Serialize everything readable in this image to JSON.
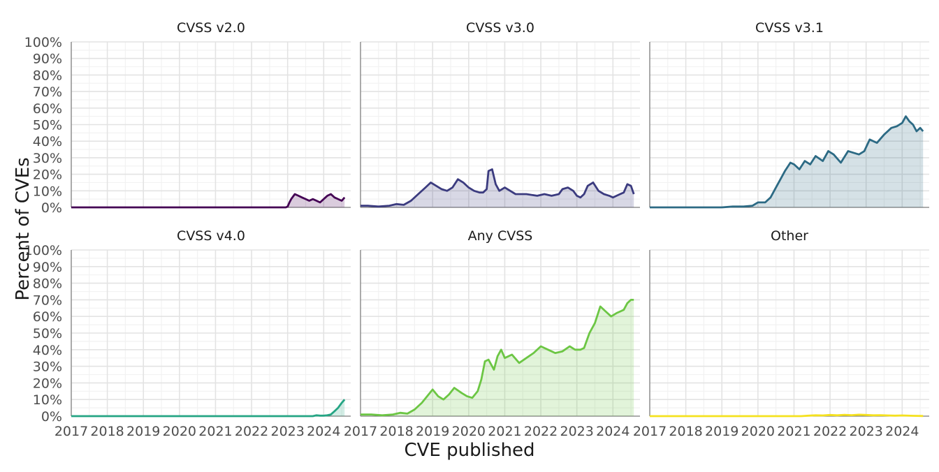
{
  "chart_data": {
    "type": "area",
    "xlabel": "CVE published",
    "ylabel": "Percent of CVEs",
    "x_ticks": [
      "2017",
      "2018",
      "2019",
      "2020",
      "2021",
      "2022",
      "2023",
      "2024"
    ],
    "y_ticks": [
      "0%",
      "10%",
      "20%",
      "30%",
      "40%",
      "50%",
      "60%",
      "70%",
      "80%",
      "90%",
      "100%"
    ],
    "xlim": [
      2017.0,
      2024.75
    ],
    "ylim": [
      0,
      100
    ],
    "grid": true,
    "colors": {
      "CVSS v2.0": "#440154",
      "CVSS v3.0": "#3b3b7f",
      "CVSS v3.1": "#2c6a84",
      "CVSS v4.0": "#25a584",
      "Any CVSS": "#6cc644",
      "Other": "#f5e11f"
    },
    "panels": [
      {
        "title": "CVSS v2.0",
        "x": [
          2017.0,
          2022.95,
          2023.0,
          2023.05,
          2023.1,
          2023.2,
          2023.3,
          2023.4,
          2023.5,
          2023.6,
          2023.7,
          2023.8,
          2023.9,
          2024.0,
          2024.1,
          2024.2,
          2024.3,
          2024.4,
          2024.5,
          2024.58
        ],
        "y": [
          0,
          0,
          0.5,
          3,
          5,
          8,
          7,
          6,
          5,
          4,
          5,
          4,
          3,
          5,
          7,
          8,
          6,
          5,
          4,
          6
        ]
      },
      {
        "title": "CVSS v3.0",
        "x": [
          2017.0,
          2017.2,
          2017.5,
          2017.8,
          2018.0,
          2018.2,
          2018.4,
          2018.6,
          2018.8,
          2018.95,
          2019.1,
          2019.25,
          2019.4,
          2019.55,
          2019.7,
          2019.85,
          2020.0,
          2020.15,
          2020.3,
          2020.4,
          2020.5,
          2020.55,
          2020.65,
          2020.75,
          2020.85,
          2021.0,
          2021.3,
          2021.6,
          2021.9,
          2022.1,
          2022.3,
          2022.5,
          2022.6,
          2022.75,
          2022.9,
          2023.0,
          2023.1,
          2023.2,
          2023.3,
          2023.45,
          2023.6,
          2023.75,
          2023.9,
          2024.0,
          2024.1,
          2024.2,
          2024.3,
          2024.4,
          2024.5,
          2024.58
        ],
        "y": [
          1,
          1,
          0.5,
          1,
          2,
          1.5,
          4,
          8,
          12,
          15,
          13,
          11,
          10,
          12,
          17,
          15,
          12,
          10,
          9,
          9,
          11,
          22,
          23,
          14,
          10,
          12,
          8,
          8,
          7,
          8,
          7,
          8,
          11,
          12,
          10,
          7,
          6,
          8,
          13,
          15,
          10,
          8,
          7,
          6,
          7,
          8,
          9,
          14,
          13,
          8
        ]
      },
      {
        "title": "CVSS v3.1",
        "x": [
          2017.0,
          2018.5,
          2019.0,
          2019.3,
          2019.6,
          2019.85,
          2020.0,
          2020.2,
          2020.35,
          2020.5,
          2020.6,
          2020.75,
          2020.9,
          2021.0,
          2021.15,
          2021.3,
          2021.45,
          2021.6,
          2021.8,
          2021.95,
          2022.1,
          2022.3,
          2022.5,
          2022.65,
          2022.8,
          2022.95,
          2023.1,
          2023.3,
          2023.5,
          2023.7,
          2023.85,
          2024.0,
          2024.1,
          2024.2,
          2024.3,
          2024.4,
          2024.5,
          2024.58
        ],
        "y": [
          0,
          0,
          0,
          0.5,
          0.5,
          1,
          3,
          3,
          6,
          12,
          16,
          22,
          27,
          26,
          23,
          28,
          26,
          31,
          28,
          34,
          32,
          27,
          34,
          33,
          32,
          34,
          41,
          39,
          44,
          48,
          49,
          51,
          55,
          52,
          50,
          46,
          48,
          46
        ]
      },
      {
        "title": "CVSS v4.0",
        "x": [
          2017.0,
          2023.7,
          2023.8,
          2023.9,
          2024.0,
          2024.1,
          2024.2,
          2024.3,
          2024.4,
          2024.5,
          2024.58
        ],
        "y": [
          0,
          0,
          0.5,
          0.3,
          0.3,
          0.5,
          1,
          3,
          5,
          8,
          10
        ]
      },
      {
        "title": "Any CVSS",
        "x": [
          2017.0,
          2017.3,
          2017.6,
          2017.9,
          2018.1,
          2018.3,
          2018.5,
          2018.7,
          2018.85,
          2019.0,
          2019.15,
          2019.3,
          2019.45,
          2019.6,
          2019.8,
          2019.95,
          2020.1,
          2020.25,
          2020.35,
          2020.45,
          2020.55,
          2020.7,
          2020.8,
          2020.9,
          2021.0,
          2021.2,
          2021.4,
          2021.6,
          2021.8,
          2022.0,
          2022.2,
          2022.4,
          2022.6,
          2022.8,
          2022.95,
          2023.1,
          2023.2,
          2023.35,
          2023.5,
          2023.65,
          2023.8,
          2023.95,
          2024.1,
          2024.2,
          2024.3,
          2024.4,
          2024.5,
          2024.58
        ],
        "y": [
          1,
          1,
          0.5,
          1,
          2,
          1.5,
          4,
          8,
          12,
          16,
          12,
          10,
          13,
          17,
          14,
          12,
          11,
          15,
          22,
          33,
          34,
          28,
          36,
          40,
          35,
          37,
          32,
          35,
          38,
          42,
          40,
          38,
          39,
          42,
          40,
          40,
          41,
          50,
          56,
          66,
          63,
          60,
          62,
          63,
          64,
          68,
          70,
          70
        ]
      },
      {
        "title": "Other",
        "x": [
          2017.0,
          2021.2,
          2021.4,
          2021.6,
          2021.8,
          2022.0,
          2022.2,
          2022.4,
          2022.6,
          2022.8,
          2023.0,
          2023.2,
          2023.4,
          2023.6,
          2023.8,
          2024.0,
          2024.3,
          2024.58
        ],
        "y": [
          0,
          0,
          0.3,
          0.5,
          0.4,
          0.7,
          0.5,
          0.8,
          0.6,
          0.9,
          0.7,
          0.5,
          0.6,
          0.4,
          0.3,
          0.4,
          0.2,
          0.1
        ]
      }
    ]
  }
}
